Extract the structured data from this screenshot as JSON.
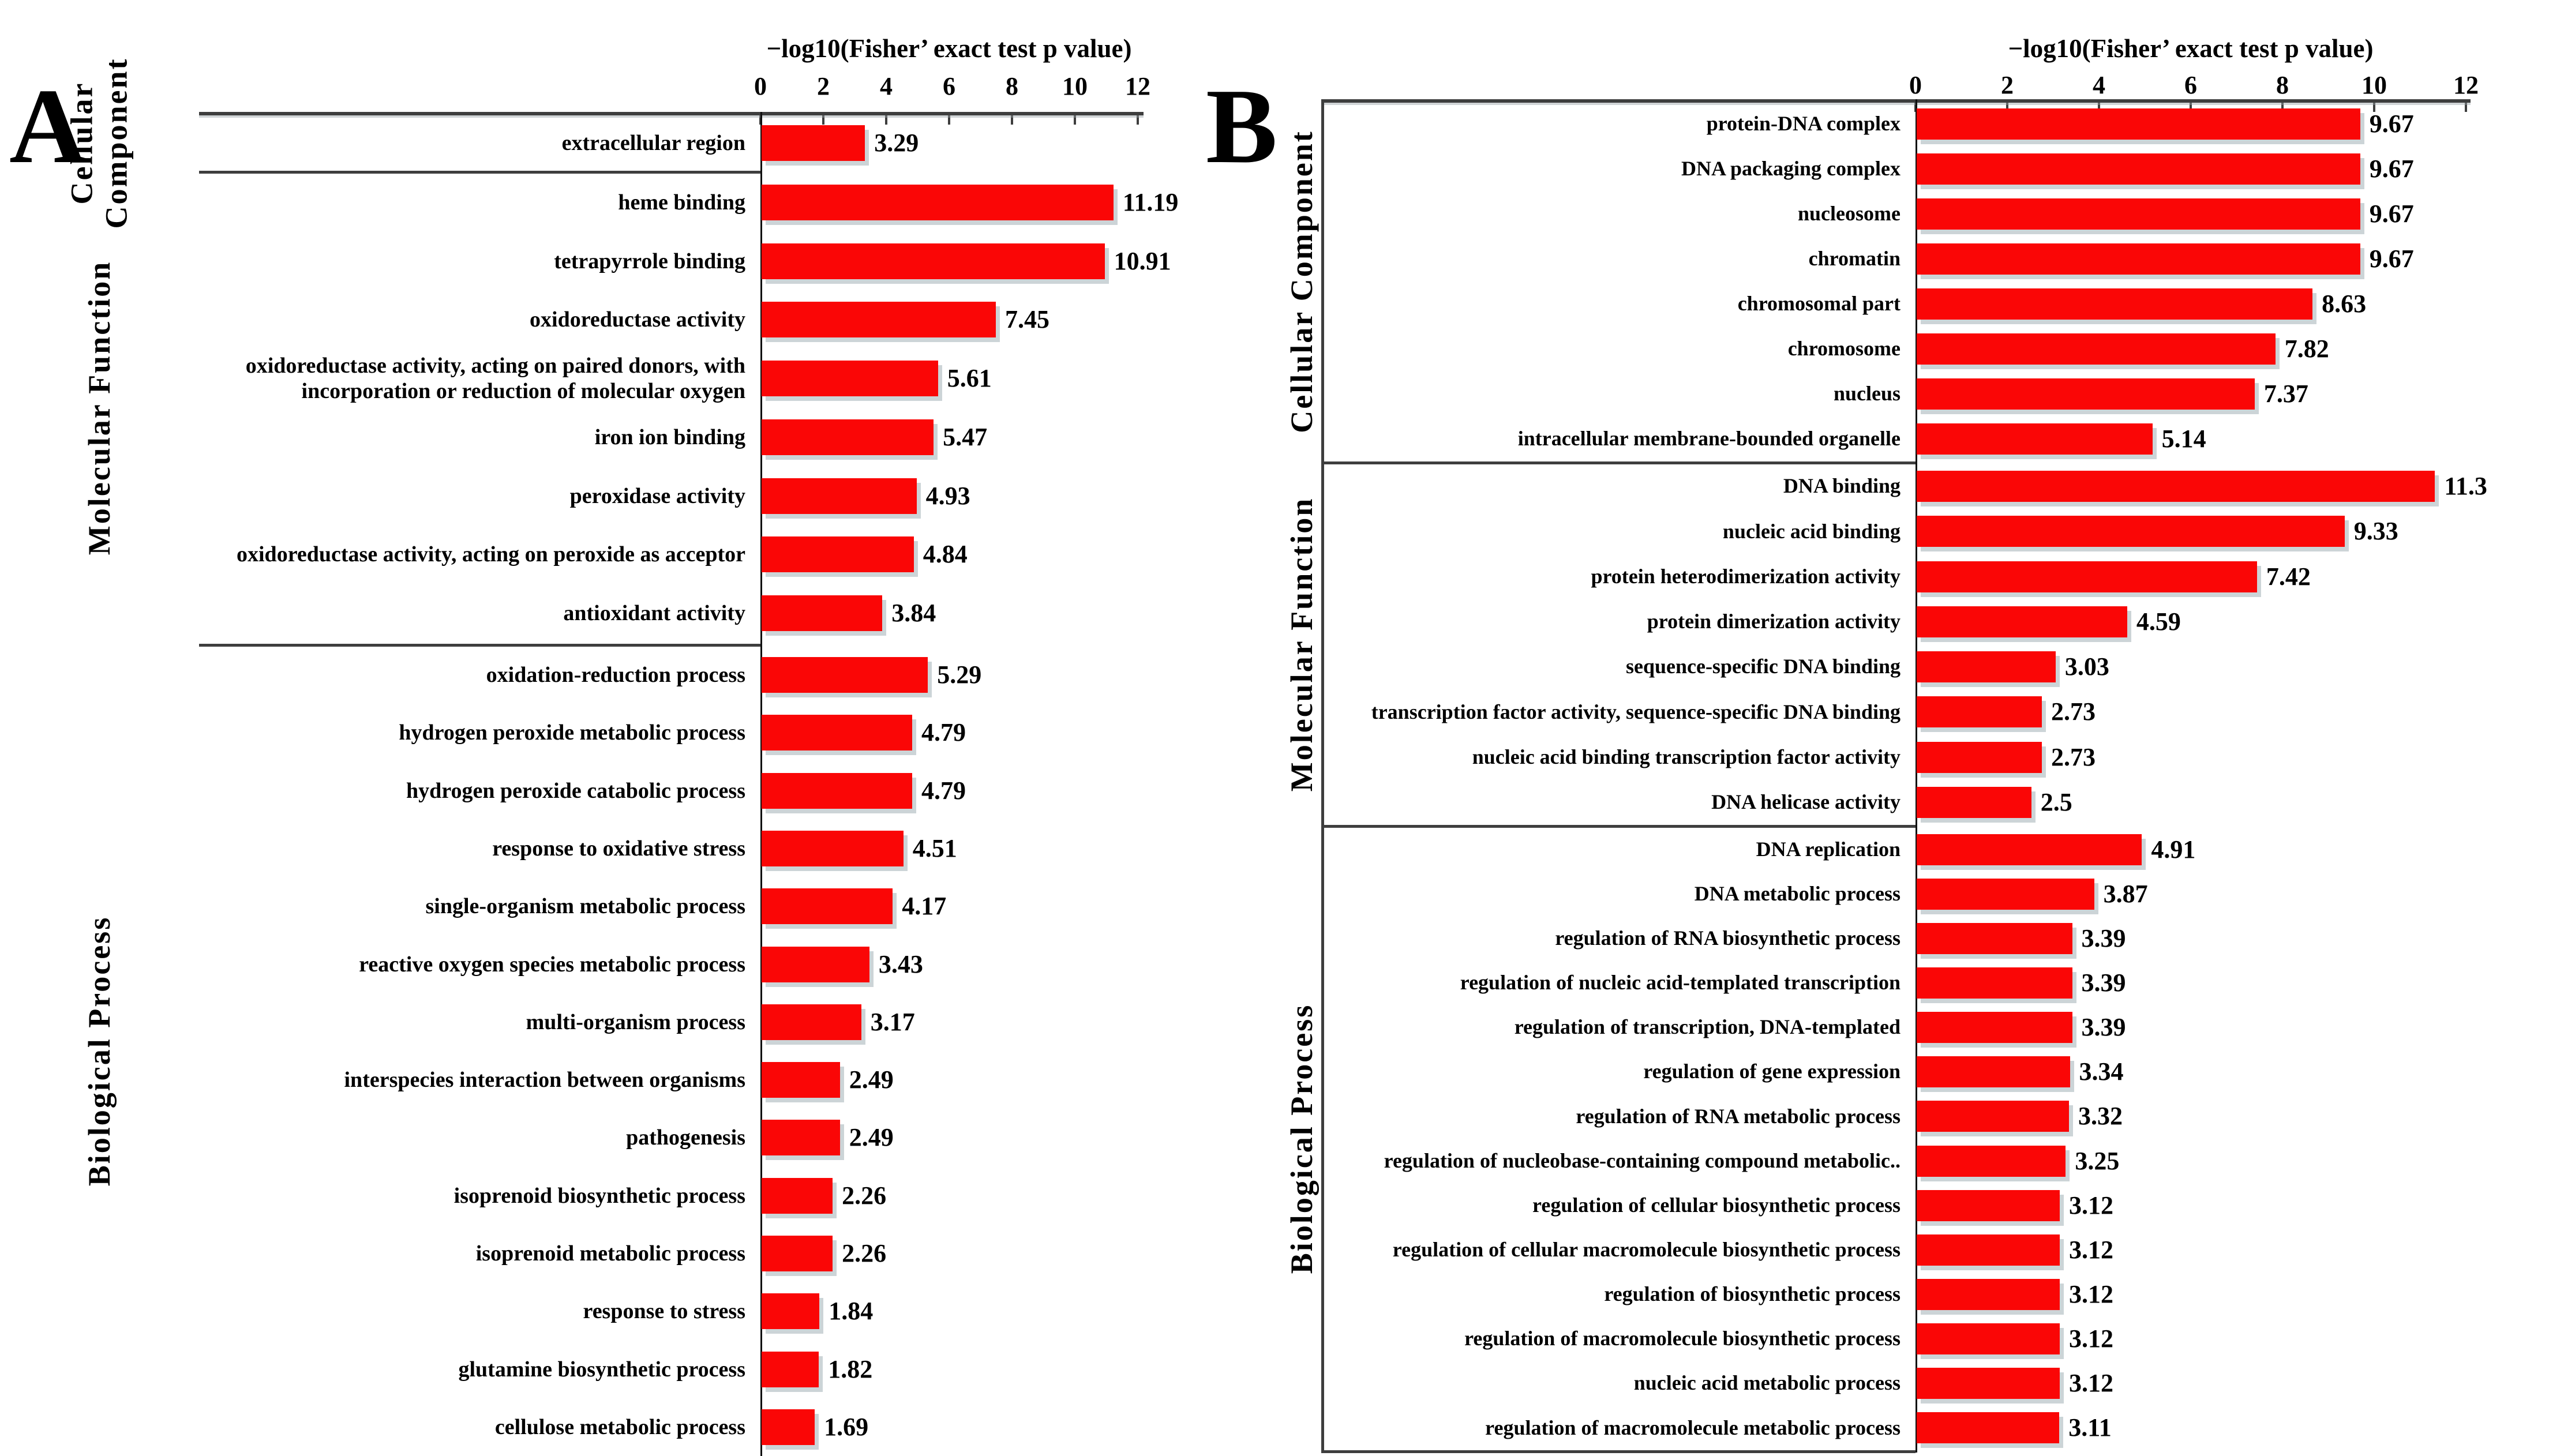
{
  "colors": {
    "bar": "#fa0606",
    "bar_shadow": "#ccd4d7",
    "axis_line": "#3e3e3e",
    "text": "#000000",
    "background": "#ffffff"
  },
  "chart_data": [
    {
      "type": "bar",
      "orientation": "horizontal",
      "panel_label": "A",
      "xlabel": "−log10(Fisher’ exact test p value)",
      "xticks": [
        0,
        2,
        4,
        6,
        8,
        10,
        12
      ],
      "xlim": [
        0,
        12
      ],
      "grid": false,
      "legend": false,
      "groups": [
        {
          "name": "Cellular Component",
          "name_lines": [
            "Cellular",
            "Component"
          ],
          "items": [
            {
              "term": "extracellular region",
              "value": 3.29,
              "label": "3.29"
            }
          ]
        },
        {
          "name": "Molecular Function",
          "name_lines": [
            "Molecular Function"
          ],
          "items": [
            {
              "term": "heme binding",
              "value": 11.19,
              "label": "11.19"
            },
            {
              "term": "tetrapyrrole binding",
              "value": 10.91,
              "label": "10.91"
            },
            {
              "term": "oxidoreductase activity",
              "value": 7.45,
              "label": "7.45"
            },
            {
              "term": "oxidoreductase activity, acting on paired donors, with incorporation or reduction of molecular oxygen",
              "value": 5.61,
              "label": "5.61"
            },
            {
              "term": "iron ion binding",
              "value": 5.47,
              "label": "5.47"
            },
            {
              "term": "peroxidase activity",
              "value": 4.93,
              "label": "4.93"
            },
            {
              "term": "oxidoreductase activity, acting on peroxide as acceptor",
              "value": 4.84,
              "label": "4.84"
            },
            {
              "term": "antioxidant activity",
              "value": 3.84,
              "label": "3.84"
            }
          ]
        },
        {
          "name": "Biological Process",
          "name_lines": [
            "Biological Process"
          ],
          "items": [
            {
              "term": "oxidation-reduction process",
              "value": 5.29,
              "label": "5.29"
            },
            {
              "term": "hydrogen peroxide metabolic process",
              "value": 4.79,
              "label": "4.79"
            },
            {
              "term": "hydrogen peroxide catabolic process",
              "value": 4.79,
              "label": "4.79"
            },
            {
              "term": "response to oxidative stress",
              "value": 4.51,
              "label": "4.51"
            },
            {
              "term": "single-organism metabolic process",
              "value": 4.17,
              "label": "4.17"
            },
            {
              "term": "reactive oxygen species metabolic process",
              "value": 3.43,
              "label": "3.43"
            },
            {
              "term": "multi-organism process",
              "value": 3.17,
              "label": "3.17"
            },
            {
              "term": "interspecies interaction between organisms",
              "value": 2.49,
              "label": "2.49"
            },
            {
              "term": "pathogenesis",
              "value": 2.49,
              "label": "2.49"
            },
            {
              "term": "isoprenoid biosynthetic process",
              "value": 2.26,
              "label": "2.26"
            },
            {
              "term": "isoprenoid metabolic process",
              "value": 2.26,
              "label": "2.26"
            },
            {
              "term": "response to stress",
              "value": 1.84,
              "label": "1.84"
            },
            {
              "term": "glutamine biosynthetic process",
              "value": 1.82,
              "label": "1.82"
            },
            {
              "term": "cellulose metabolic process",
              "value": 1.69,
              "label": "1.69"
            }
          ]
        }
      ]
    },
    {
      "type": "bar",
      "orientation": "horizontal",
      "panel_label": "B",
      "xlabel": "−log10(Fisher’ exact test p value)",
      "xticks": [
        0,
        2,
        4,
        6,
        8,
        10,
        12
      ],
      "xlim": [
        0,
        12
      ],
      "grid": false,
      "legend": false,
      "groups": [
        {
          "name": "Cellular Component",
          "name_lines": [
            "Cellular Component"
          ],
          "items": [
            {
              "term": "protein-DNA complex",
              "value": 9.67,
              "label": "9.67"
            },
            {
              "term": "DNA packaging complex",
              "value": 9.67,
              "label": "9.67"
            },
            {
              "term": "nucleosome",
              "value": 9.67,
              "label": "9.67"
            },
            {
              "term": "chromatin",
              "value": 9.67,
              "label": "9.67"
            },
            {
              "term": "chromosomal part",
              "value": 8.63,
              "label": "8.63"
            },
            {
              "term": "chromosome",
              "value": 7.82,
              "label": "7.82"
            },
            {
              "term": "nucleus",
              "value": 7.37,
              "label": "7.37"
            },
            {
              "term": "intracellular membrane-bounded organelle",
              "value": 5.14,
              "label": "5.14"
            }
          ]
        },
        {
          "name": "Molecular Function",
          "name_lines": [
            "Molecular Function"
          ],
          "items": [
            {
              "term": "DNA binding",
              "value": 11.3,
              "label": "11.3"
            },
            {
              "term": "nucleic acid binding",
              "value": 9.33,
              "label": "9.33"
            },
            {
              "term": "protein heterodimerization activity",
              "value": 7.42,
              "label": "7.42"
            },
            {
              "term": "protein dimerization activity",
              "value": 4.59,
              "label": "4.59"
            },
            {
              "term": "sequence-specific DNA binding",
              "value": 3.03,
              "label": "3.03"
            },
            {
              "term": "transcription factor activity, sequence-specific DNA binding",
              "value": 2.73,
              "label": "2.73"
            },
            {
              "term": "nucleic acid binding transcription factor activity",
              "value": 2.73,
              "label": "2.73"
            },
            {
              "term": "DNA helicase activity",
              "value": 2.5,
              "label": "2.5"
            }
          ]
        },
        {
          "name": "Biological Process",
          "name_lines": [
            "Biological Process"
          ],
          "items": [
            {
              "term": "DNA replication",
              "value": 4.91,
              "label": "4.91"
            },
            {
              "term": "DNA metabolic process",
              "value": 3.87,
              "label": "3.87"
            },
            {
              "term": "regulation of RNA biosynthetic process",
              "value": 3.39,
              "label": "3.39"
            },
            {
              "term": "regulation of nucleic acid-templated transcription",
              "value": 3.39,
              "label": "3.39"
            },
            {
              "term": "regulation of transcription, DNA-templated",
              "value": 3.39,
              "label": "3.39"
            },
            {
              "term": "regulation of gene expression",
              "value": 3.34,
              "label": "3.34"
            },
            {
              "term": "regulation of RNA metabolic process",
              "value": 3.32,
              "label": "3.32"
            },
            {
              "term": "regulation of nucleobase-containing compound metabolic..",
              "value": 3.25,
              "label": "3.25"
            },
            {
              "term": "regulation of cellular biosynthetic process",
              "value": 3.12,
              "label": "3.12"
            },
            {
              "term": "regulation of cellular macromolecule biosynthetic process",
              "value": 3.12,
              "label": "3.12"
            },
            {
              "term": "regulation of biosynthetic process",
              "value": 3.12,
              "label": "3.12"
            },
            {
              "term": "regulation of macromolecule biosynthetic process",
              "value": 3.12,
              "label": "3.12"
            },
            {
              "term": "nucleic acid metabolic process",
              "value": 3.12,
              "label": "3.12"
            },
            {
              "term": "regulation of macromolecule metabolic process",
              "value": 3.11,
              "label": "3.11"
            }
          ]
        }
      ]
    }
  ]
}
